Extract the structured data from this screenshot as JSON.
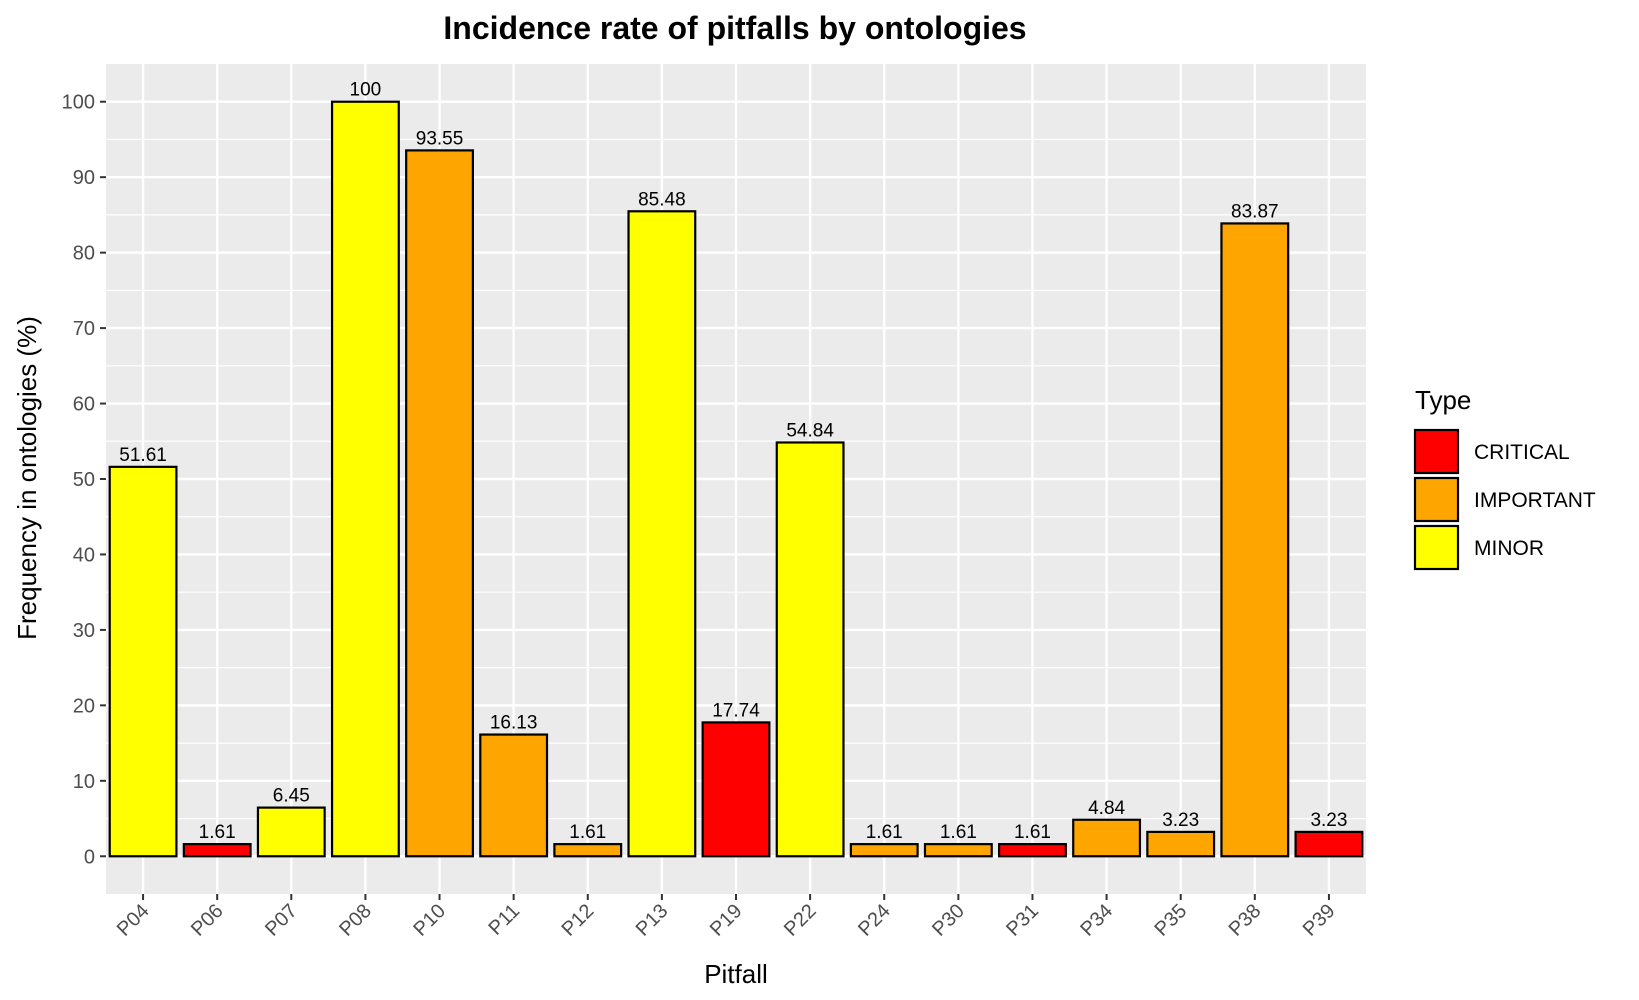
{
  "chart_data": {
    "type": "bar",
    "title": "Incidence rate of pitfalls by ontologies",
    "xlabel": "Pitfall",
    "ylabel": "Frequency in ontologies (%)",
    "ylim": [
      -5,
      105
    ],
    "yticks": [
      0,
      10,
      20,
      30,
      40,
      50,
      60,
      70,
      80,
      90,
      100
    ],
    "categories": [
      "P04",
      "P06",
      "P07",
      "P08",
      "P10",
      "P11",
      "P12",
      "P13",
      "P19",
      "P22",
      "P24",
      "P30",
      "P31",
      "P34",
      "P35",
      "P38",
      "P39"
    ],
    "values": [
      51.61,
      1.61,
      6.45,
      100,
      93.55,
      16.13,
      1.61,
      85.48,
      17.74,
      54.84,
      1.61,
      1.61,
      1.61,
      4.84,
      3.23,
      83.87,
      3.23
    ],
    "value_labels": [
      "51.61",
      "1.61",
      "6.45",
      "100",
      "93.55",
      "16.13",
      "1.61",
      "85.48",
      "17.74",
      "54.84",
      "1.61",
      "1.61",
      "1.61",
      "4.84",
      "3.23",
      "83.87",
      "3.23"
    ],
    "types": [
      "MINOR",
      "CRITICAL",
      "MINOR",
      "MINOR",
      "IMPORTANT",
      "IMPORTANT",
      "IMPORTANT",
      "MINOR",
      "CRITICAL",
      "MINOR",
      "IMPORTANT",
      "IMPORTANT",
      "CRITICAL",
      "IMPORTANT",
      "IMPORTANT",
      "IMPORTANT",
      "CRITICAL"
    ],
    "legend": {
      "title": "Type",
      "position": "right",
      "entries": [
        {
          "label": "CRITICAL",
          "color": "#ff0000"
        },
        {
          "label": "IMPORTANT",
          "color": "#ffa500"
        },
        {
          "label": "MINOR",
          "color": "#ffff00"
        }
      ]
    },
    "grid": true,
    "colors": {
      "panel_background": "#ebebeb",
      "grid_line": "#ffffff",
      "bar_outline": "#000000"
    }
  }
}
